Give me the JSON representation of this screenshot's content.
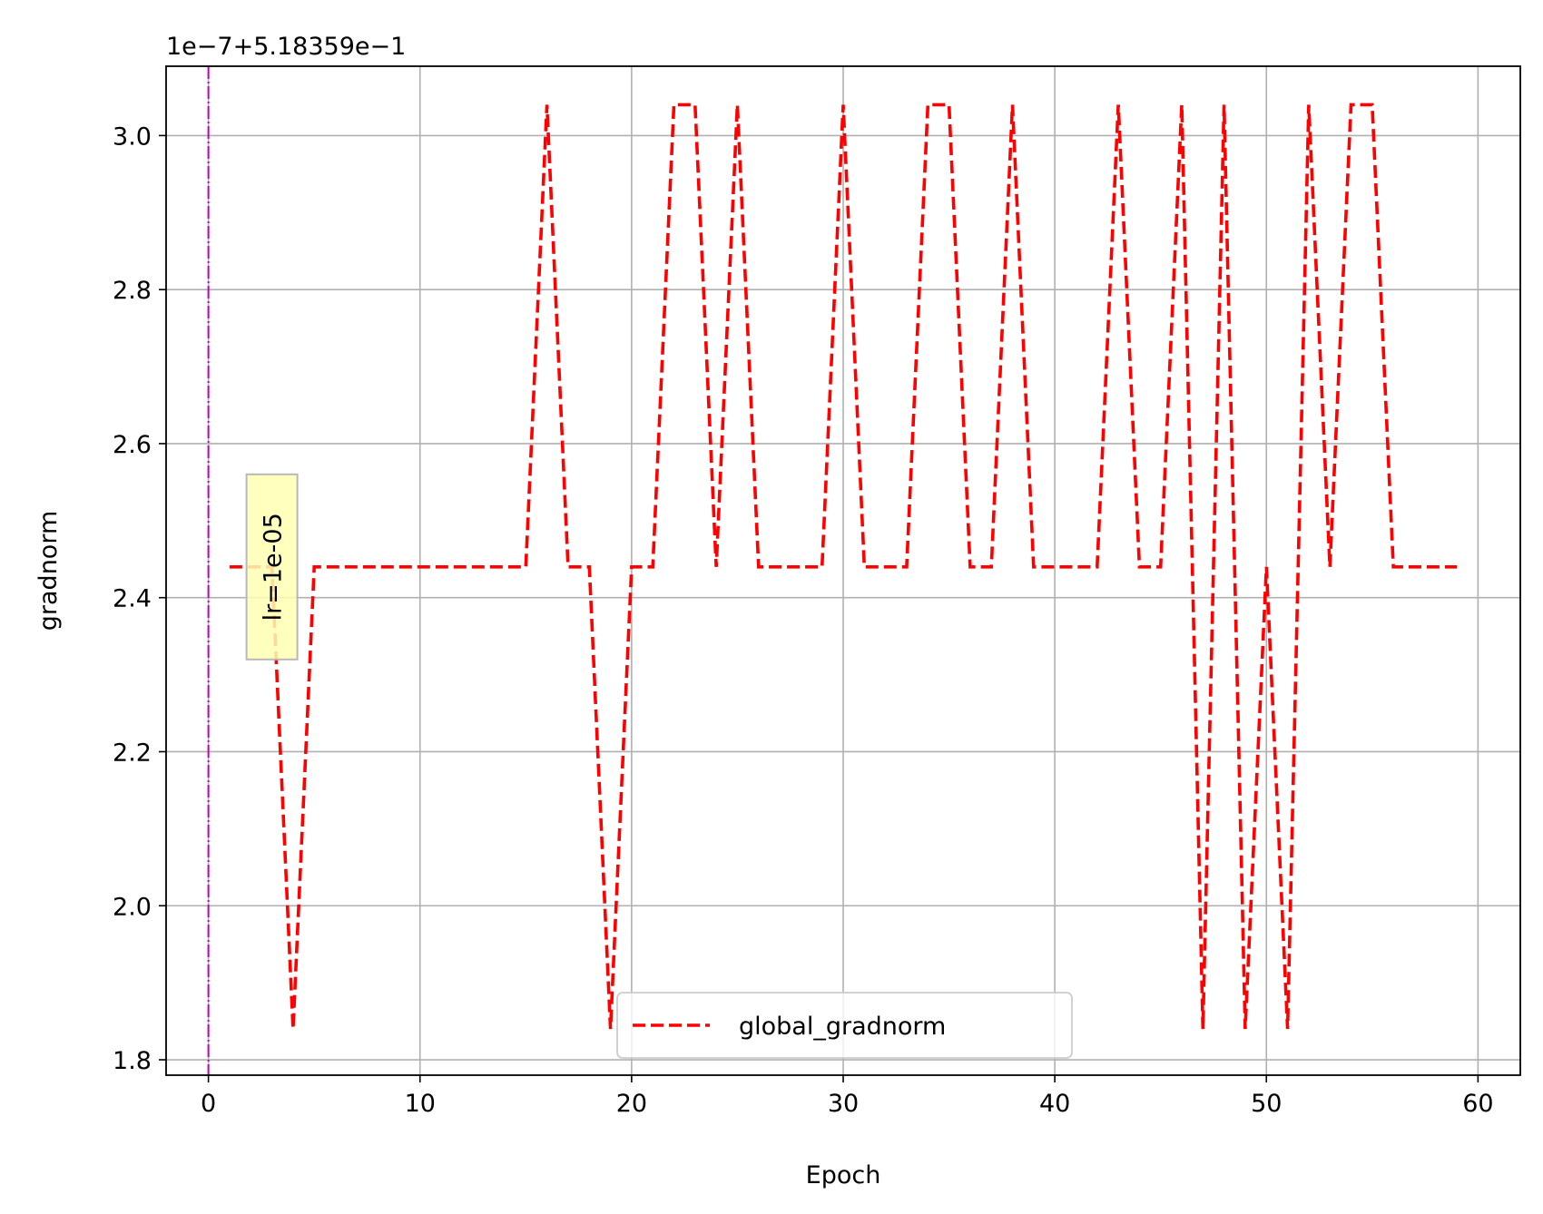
{
  "chart_data": {
    "type": "line",
    "xlabel": "Epoch",
    "ylabel": "gradnorm",
    "offset_label": "1e−7+5.18359e−1",
    "xlim": [
      -2,
      62
    ],
    "ylim": [
      1.78,
      3.09
    ],
    "xticks": [
      0,
      10,
      20,
      30,
      40,
      50,
      60
    ],
    "yticks": [
      1.8,
      2.0,
      2.2,
      2.4,
      2.6,
      2.8,
      3.0
    ],
    "grid": true,
    "legend": {
      "placement": "lower-center"
    },
    "series": [
      {
        "name": "global_gradnorm",
        "color": "#ff0000",
        "style": "dashed",
        "x": [
          1,
          2,
          3,
          4,
          5,
          6,
          7,
          8,
          9,
          10,
          11,
          12,
          13,
          14,
          15,
          16,
          17,
          18,
          19,
          20,
          21,
          22,
          23,
          24,
          25,
          26,
          27,
          28,
          29,
          30,
          31,
          32,
          33,
          34,
          35,
          36,
          37,
          38,
          39,
          40,
          41,
          42,
          43,
          44,
          45,
          46,
          47,
          48,
          49,
          50,
          51,
          52,
          53,
          54,
          55,
          56,
          57,
          58,
          59
        ],
        "y": [
          2.44,
          2.44,
          2.44,
          1.84,
          2.44,
          2.44,
          2.44,
          2.44,
          2.44,
          2.44,
          2.44,
          2.44,
          2.44,
          2.44,
          2.44,
          3.04,
          2.44,
          2.44,
          1.84,
          2.44,
          2.44,
          3.04,
          3.04,
          2.44,
          3.04,
          2.44,
          2.44,
          2.44,
          2.44,
          3.04,
          2.44,
          2.44,
          2.44,
          3.04,
          3.04,
          2.44,
          2.44,
          3.04,
          2.44,
          2.44,
          2.44,
          2.44,
          3.04,
          2.44,
          2.44,
          3.04,
          1.84,
          3.04,
          1.84,
          2.44,
          1.84,
          3.04,
          2.44,
          3.04,
          3.04,
          2.44,
          2.44,
          2.44,
          2.44
        ]
      }
    ],
    "vline": {
      "x": 0,
      "color": "#bf00bf"
    },
    "annotation": {
      "text": "lr=1e-05",
      "x": 3,
      "y": 2.44,
      "background": "#ffffb3"
    }
  }
}
